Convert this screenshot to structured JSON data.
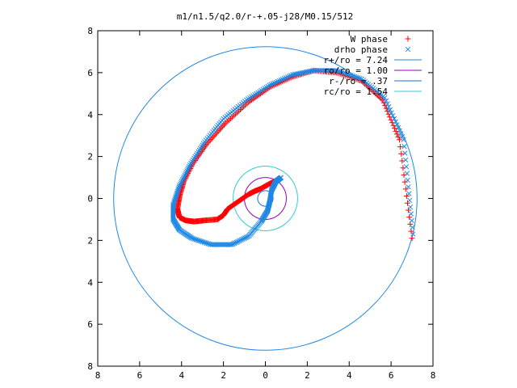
{
  "chart_data": {
    "type": "scatter",
    "title": "m1/n1.5/q2.0/r-+.05-j28/M0.15/512",
    "xlabel": "",
    "ylabel": "",
    "xlim": [
      -8,
      8
    ],
    "ylim": [
      -8,
      8
    ],
    "x_ticks": [
      -8,
      -6,
      -4,
      -2,
      0,
      2,
      4,
      6,
      8
    ],
    "y_ticks": [
      -8,
      -6,
      -4,
      -2,
      0,
      2,
      4,
      6,
      8
    ],
    "x_tick_labels": [
      "8",
      "6",
      "4",
      "2",
      "0",
      "2",
      "4",
      "6",
      "8"
    ],
    "y_tick_labels": [
      "8",
      "6",
      "4",
      "2",
      "0",
      "2",
      "4",
      "6",
      "8"
    ],
    "grid": false,
    "legend_position": "top-right",
    "series": [
      {
        "name": "W phase",
        "kind": "points",
        "marker": "plus",
        "color": "#ff0000",
        "x": [
          7.0,
          6.4,
          5.6,
          4.6,
          3.4,
          2.3,
          1.3,
          0.2,
          -0.8,
          -1.9,
          -2.8,
          -3.5,
          -3.9,
          -4.1,
          -4.2,
          -4.1,
          -3.8,
          -3.4,
          -2.9,
          -2.3,
          -2.0,
          -1.8,
          -1.3,
          -0.8,
          -0.5,
          -0.25,
          0.2,
          0.6
        ],
        "y": [
          -1.9,
          2.8,
          4.7,
          5.6,
          6.0,
          6.1,
          5.8,
          5.3,
          4.6,
          3.6,
          2.6,
          1.6,
          0.8,
          0.1,
          -0.5,
          -0.9,
          -1.05,
          -1.1,
          -1.05,
          -1.0,
          -0.8,
          -0.5,
          -0.15,
          0.2,
          0.35,
          0.45,
          0.7,
          0.9
        ]
      },
      {
        "name": "drho phase",
        "kind": "points",
        "marker": "cross",
        "color": "#1e88e5",
        "x": [
          7.05,
          6.6,
          5.7,
          4.6,
          3.4,
          2.3,
          1.3,
          0.2,
          -0.9,
          -2.0,
          -2.9,
          -3.6,
          -4.1,
          -4.4,
          -4.4,
          -4.1,
          -3.5,
          -2.6,
          -1.6,
          -0.8,
          -0.2,
          0.1,
          0.2,
          0.3,
          0.5,
          0.75
        ],
        "y": [
          -1.7,
          2.8,
          4.8,
          5.7,
          6.1,
          6.1,
          5.9,
          5.4,
          4.7,
          3.8,
          2.7,
          1.6,
          0.6,
          -0.3,
          -1.0,
          -1.5,
          -1.9,
          -2.2,
          -2.2,
          -1.8,
          -1.1,
          -0.6,
          -0.2,
          0.4,
          0.8,
          1.0
        ]
      },
      {
        "name": "r+/ro = 7.24",
        "kind": "circle",
        "radius": 7.24,
        "color": "#1e88e5"
      },
      {
        "name": "ro/ro = 1.00",
        "kind": "circle",
        "radius": 1.0,
        "color": "#9900bb"
      },
      {
        "name": "r-/ro = .37",
        "kind": "circle",
        "radius": 0.37,
        "color": "#1e6fd8"
      },
      {
        "name": "rc/ro = 1.54",
        "kind": "circle",
        "radius": 1.54,
        "color": "#33cccc"
      }
    ]
  }
}
